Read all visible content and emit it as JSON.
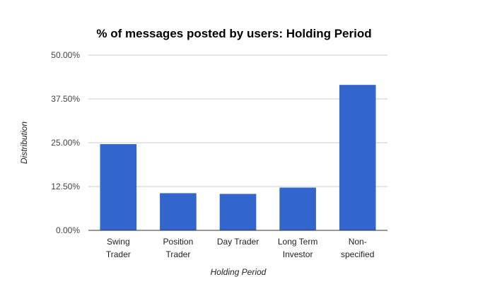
{
  "chart_data": {
    "type": "bar",
    "title": "% of messages posted by users: Holding Period",
    "xlabel": "Holding Period",
    "ylabel": "Distribution",
    "categories": [
      [
        "Swing",
        "Trader"
      ],
      [
        "Position",
        "Trader"
      ],
      [
        "Day Trader"
      ],
      [
        "Long Term",
        "Investor"
      ],
      [
        "Non-",
        "specified"
      ]
    ],
    "values": [
      24.6,
      10.6,
      10.4,
      12.2,
      41.5
    ],
    "ylim": [
      0,
      50
    ],
    "yticks": [
      {
        "value": 0,
        "label": "0.00%"
      },
      {
        "value": 12.5,
        "label": "12.50%"
      },
      {
        "value": 25,
        "label": "25.00%"
      },
      {
        "value": 37.5,
        "label": "37.50%"
      },
      {
        "value": 50,
        "label": "50.00%"
      }
    ],
    "grid": true,
    "legend": "none",
    "colors": {
      "bar": "#3366cc",
      "grid": "#cccccc",
      "axis": "#333333"
    }
  }
}
